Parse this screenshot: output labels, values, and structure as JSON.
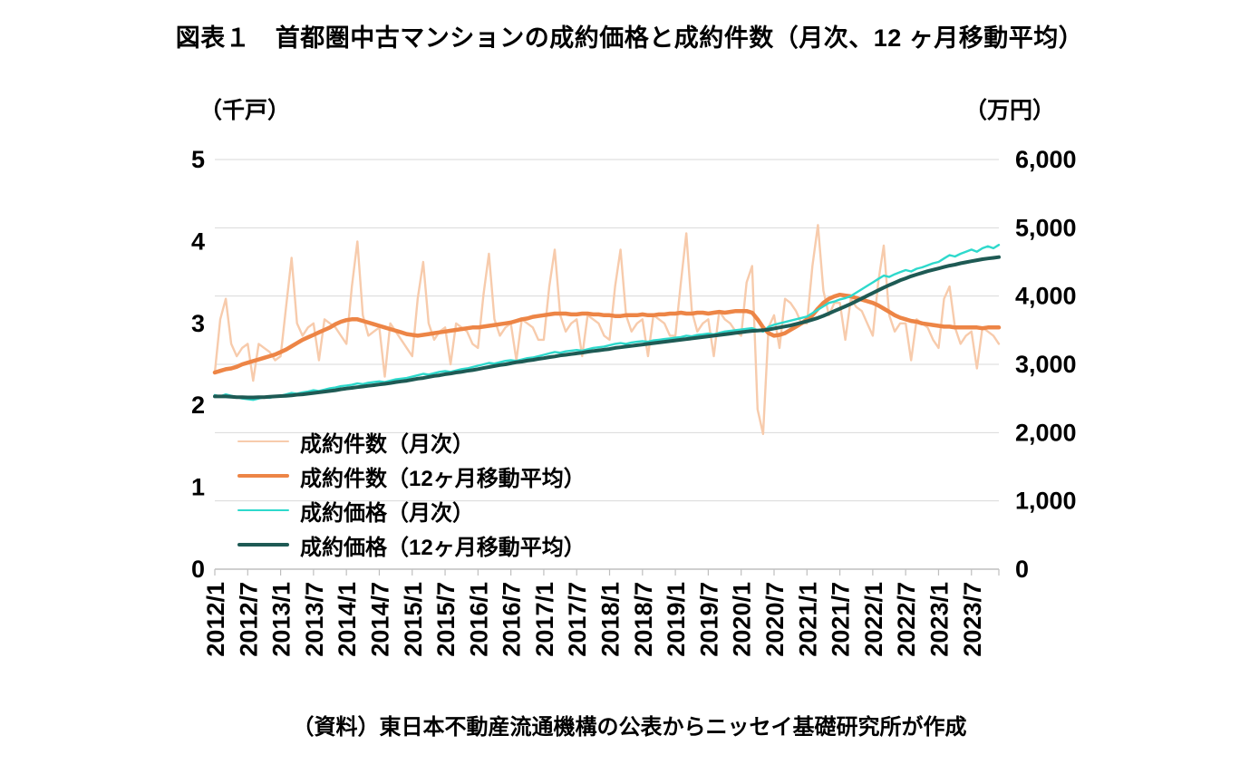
{
  "title": "図表１　首都圏中古マンションの成約価格と成約件数（月次、12 ヶ月移動平均）",
  "left_axis_unit": "（千戸）",
  "right_axis_unit": "（万円）",
  "source": "（資料）東日本不動産流通機構の公表からニッセイ基礎研究所が作成",
  "colors": {
    "deals_monthly": "#F7CBAC",
    "deals_ma": "#ED8546",
    "price_monthly": "#2ED9CC",
    "price_ma": "#1E5A54",
    "grid": "#D9D9D9",
    "axis": "#BFBFBF",
    "text": "#000000"
  },
  "chart_data": {
    "type": "line",
    "title": "図表１　首都圏中古マンションの成約価格と成約件数（月次、12 ヶ月移動平均）",
    "grid": true,
    "legend_position": "inside-bottom-left",
    "x_start": "2012/1",
    "x_frequency": "monthly",
    "x_tick_labels": [
      "2012/1",
      "2012/7",
      "2013/1",
      "2013/7",
      "2014/1",
      "2014/7",
      "2015/1",
      "2015/7",
      "2016/1",
      "2016/7",
      "2017/1",
      "2017/7",
      "2018/1",
      "2018/7",
      "2019/1",
      "2019/7",
      "2020/1",
      "2020/7",
      "2021/1",
      "2021/7",
      "2022/1",
      "2022/7",
      "2023/1",
      "2023/7"
    ],
    "left_axis": {
      "label": "（千戸）",
      "range": [
        0,
        5
      ],
      "tick_labels_top_to_bottom": [
        "5",
        "4",
        "3",
        "2",
        "1",
        "0"
      ]
    },
    "right_axis": {
      "label": "（万円）",
      "range": [
        0,
        6000
      ],
      "tick_labels_top_to_bottom": [
        "6,000",
        "5,000",
        "4,000",
        "3,000",
        "2,000",
        "1,000",
        "0"
      ]
    },
    "series": [
      {
        "name": "成約件数（月次）",
        "axis": "left",
        "color_key": "deals_monthly",
        "values": [
          2.4,
          3.05,
          3.3,
          2.75,
          2.6,
          2.7,
          2.75,
          2.3,
          2.75,
          2.7,
          2.65,
          2.55,
          2.6,
          3.2,
          3.8,
          3.0,
          2.85,
          2.95,
          3.0,
          2.55,
          3.05,
          3.0,
          2.95,
          2.85,
          2.75,
          3.45,
          4.0,
          3.1,
          2.85,
          2.9,
          2.95,
          2.35,
          3.0,
          2.9,
          2.8,
          2.7,
          2.6,
          3.3,
          3.75,
          3.0,
          2.8,
          2.9,
          2.95,
          2.5,
          3.0,
          2.95,
          2.9,
          2.75,
          2.7,
          3.35,
          3.85,
          3.05,
          2.85,
          2.95,
          3.0,
          2.55,
          3.05,
          3.0,
          2.95,
          2.8,
          2.8,
          3.45,
          3.9,
          3.1,
          2.9,
          3.0,
          3.05,
          2.6,
          3.1,
          3.05,
          3.0,
          2.85,
          2.8,
          3.45,
          3.9,
          3.1,
          2.9,
          3.0,
          3.05,
          2.6,
          3.1,
          3.05,
          3.0,
          2.85,
          2.85,
          3.5,
          4.1,
          3.15,
          2.9,
          3.0,
          3.05,
          2.6,
          3.15,
          3.05,
          3.0,
          2.9,
          2.85,
          3.5,
          3.7,
          1.95,
          1.65,
          2.95,
          3.1,
          2.7,
          3.3,
          3.25,
          3.15,
          3.0,
          3.0,
          3.7,
          4.2,
          3.4,
          3.1,
          3.25,
          3.25,
          2.8,
          3.3,
          3.2,
          3.15,
          3.0,
          2.85,
          3.5,
          3.95,
          3.1,
          2.9,
          3.0,
          3.0,
          2.55,
          3.05,
          3.0,
          2.95,
          2.8,
          2.7,
          3.3,
          3.45,
          2.95,
          2.75,
          2.85,
          2.9,
          2.45,
          2.95,
          2.9,
          2.85,
          2.75
        ]
      },
      {
        "name": "成約件数（12ヶ月移動平均）",
        "axis": "left",
        "color_key": "deals_ma",
        "values": [
          2.4,
          2.42,
          2.44,
          2.45,
          2.47,
          2.5,
          2.52,
          2.54,
          2.56,
          2.58,
          2.6,
          2.62,
          2.65,
          2.68,
          2.72,
          2.76,
          2.8,
          2.83,
          2.86,
          2.89,
          2.92,
          2.95,
          2.99,
          3.02,
          3.04,
          3.05,
          3.05,
          3.03,
          3.01,
          2.99,
          2.97,
          2.95,
          2.93,
          2.91,
          2.89,
          2.87,
          2.86,
          2.85,
          2.86,
          2.87,
          2.88,
          2.89,
          2.9,
          2.91,
          2.92,
          2.93,
          2.94,
          2.95,
          2.95,
          2.96,
          2.97,
          2.98,
          2.99,
          3.0,
          3.01,
          3.03,
          3.05,
          3.06,
          3.08,
          3.09,
          3.1,
          3.11,
          3.12,
          3.12,
          3.12,
          3.11,
          3.11,
          3.12,
          3.12,
          3.11,
          3.11,
          3.1,
          3.1,
          3.09,
          3.09,
          3.1,
          3.1,
          3.1,
          3.11,
          3.1,
          3.1,
          3.11,
          3.11,
          3.12,
          3.12,
          3.13,
          3.12,
          3.12,
          3.13,
          3.13,
          3.12,
          3.13,
          3.14,
          3.13,
          3.14,
          3.15,
          3.15,
          3.15,
          3.13,
          3.05,
          2.95,
          2.88,
          2.85,
          2.86,
          2.88,
          2.92,
          2.96,
          3.0,
          3.05,
          3.1,
          3.18,
          3.25,
          3.3,
          3.33,
          3.35,
          3.34,
          3.33,
          3.31,
          3.29,
          3.27,
          3.25,
          3.22,
          3.18,
          3.14,
          3.1,
          3.07,
          3.05,
          3.03,
          3.02,
          3.0,
          2.99,
          2.98,
          2.97,
          2.96,
          2.96,
          2.95,
          2.95,
          2.95,
          2.95,
          2.95,
          2.94,
          2.95,
          2.95,
          2.95
        ]
      },
      {
        "name": "成約価格（月次）",
        "axis": "right",
        "color_key": "price_monthly",
        "values": [
          2550,
          2530,
          2560,
          2540,
          2520,
          2500,
          2490,
          2480,
          2500,
          2520,
          2510,
          2530,
          2540,
          2560,
          2580,
          2570,
          2590,
          2600,
          2620,
          2610,
          2630,
          2650,
          2660,
          2680,
          2690,
          2700,
          2720,
          2710,
          2730,
          2740,
          2750,
          2740,
          2760,
          2780,
          2790,
          2800,
          2820,
          2840,
          2860,
          2850,
          2870,
          2890,
          2900,
          2890,
          2910,
          2930,
          2940,
          2960,
          2980,
          3000,
          3020,
          3010,
          3030,
          3050,
          3060,
          3050,
          3070,
          3090,
          3100,
          3120,
          3140,
          3160,
          3180,
          3170,
          3190,
          3200,
          3210,
          3200,
          3220,
          3240,
          3250,
          3260,
          3280,
          3300,
          3310,
          3300,
          3320,
          3330,
          3340,
          3330,
          3350,
          3360,
          3370,
          3380,
          3390,
          3400,
          3420,
          3410,
          3430,
          3440,
          3450,
          3440,
          3460,
          3480,
          3490,
          3500,
          3510,
          3520,
          3530,
          3500,
          3480,
          3550,
          3580,
          3600,
          3620,
          3640,
          3660,
          3680,
          3700,
          3750,
          3800,
          3850,
          3900,
          3920,
          3950,
          3970,
          4000,
          4050,
          4100,
          4150,
          4200,
          4250,
          4300,
          4280,
          4320,
          4350,
          4380,
          4360,
          4400,
          4420,
          4450,
          4480,
          4500,
          4550,
          4600,
          4580,
          4620,
          4650,
          4680,
          4650,
          4700,
          4730,
          4700,
          4750
        ]
      },
      {
        "name": "成約価格（12ヶ月移動平均）",
        "axis": "right",
        "color_key": "price_ma",
        "values": [
          2530,
          2530,
          2530,
          2525,
          2520,
          2520,
          2515,
          2515,
          2520,
          2520,
          2525,
          2530,
          2535,
          2540,
          2545,
          2555,
          2560,
          2570,
          2580,
          2590,
          2600,
          2610,
          2620,
          2635,
          2645,
          2655,
          2665,
          2675,
          2685,
          2695,
          2705,
          2715,
          2725,
          2740,
          2750,
          2760,
          2775,
          2790,
          2800,
          2815,
          2830,
          2840,
          2855,
          2865,
          2880,
          2890,
          2905,
          2915,
          2930,
          2945,
          2960,
          2975,
          2990,
          3000,
          3015,
          3030,
          3040,
          3055,
          3065,
          3080,
          3090,
          3105,
          3115,
          3130,
          3140,
          3150,
          3160,
          3170,
          3185,
          3195,
          3205,
          3215,
          3225,
          3240,
          3250,
          3260,
          3270,
          3280,
          3290,
          3300,
          3310,
          3320,
          3330,
          3340,
          3350,
          3360,
          3370,
          3380,
          3390,
          3400,
          3410,
          3420,
          3430,
          3440,
          3450,
          3460,
          3470,
          3480,
          3490,
          3495,
          3500,
          3510,
          3525,
          3540,
          3555,
          3570,
          3590,
          3610,
          3630,
          3655,
          3680,
          3710,
          3745,
          3780,
          3815,
          3850,
          3885,
          3925,
          3965,
          4005,
          4045,
          4085,
          4125,
          4160,
          4195,
          4230,
          4260,
          4290,
          4315,
          4340,
          4365,
          4385,
          4405,
          4425,
          4445,
          4460,
          4480,
          4495,
          4510,
          4525,
          4540,
          4550,
          4560,
          4570
        ]
      }
    ]
  }
}
